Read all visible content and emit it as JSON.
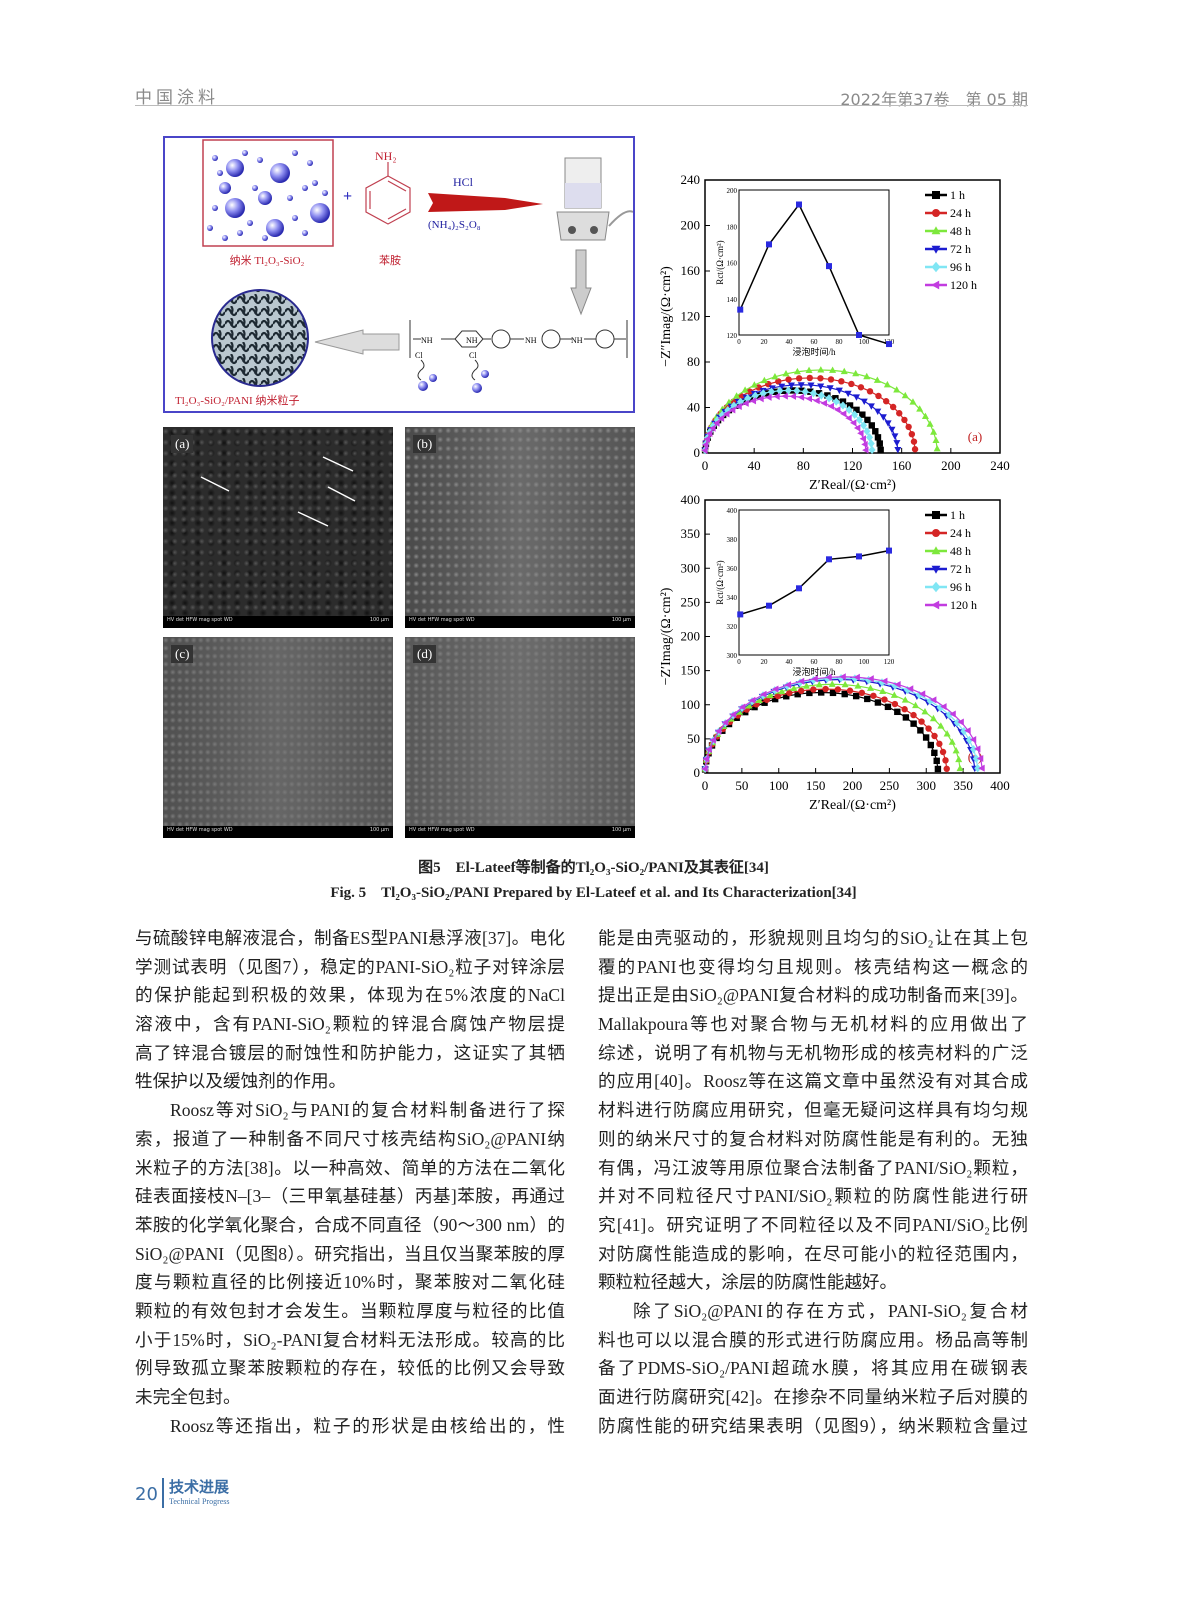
{
  "header": {
    "journal": "中国涂料",
    "issue": "2022年第37卷　第 05 期"
  },
  "scheme": {
    "reactant1_label": "纳米 Tl₂O₃-SiO₂",
    "reactant2_label": "苯胺",
    "amine_group": "NH₂",
    "plus": "+",
    "reagent_top": "HCl",
    "reagent_bottom": "(NH₄)₂S₂O₈",
    "chain_nh": [
      "NH",
      "NH",
      "NH",
      "NH"
    ],
    "chain_cl": [
      "Cl",
      "Cl"
    ],
    "product_label": "Tl₂O₃-SiO₂/PANI 纳米粒子"
  },
  "sem_images": [
    {
      "label": "(a)",
      "info": "HV  det  HFW  mag  spot  WD",
      "scale": "100 μm"
    },
    {
      "label": "(b)",
      "info": "HV  det  HFW  mag  spot  WD",
      "scale": "100 μm"
    },
    {
      "label": "(c)",
      "info": "HV  det  HFW  mag  spot  WD",
      "scale": "100 μm"
    },
    {
      "label": "(d)",
      "info": "HV  det  HFW  mag  spot  WD",
      "scale": "100 μm"
    }
  ],
  "chart_data": [
    {
      "type": "scatter-line",
      "panel_label": "(a)",
      "xlabel": "Z′Real/(Ω·cm²)",
      "ylabel": "−Z″Imag/(Ω·cm²)",
      "xlim": [
        0,
        240
      ],
      "ylim": [
        0,
        240
      ],
      "xticks": [
        "0",
        "40",
        "80",
        "120",
        "160",
        "200",
        "240"
      ],
      "yticks": [
        "0",
        "40",
        "80",
        "120",
        "160",
        "200",
        "240"
      ],
      "legend_position": "top-right",
      "series": [
        {
          "name": "1 h",
          "color": "#000000",
          "marker": "square",
          "z_real_end": 143,
          "z_imag_max": 55
        },
        {
          "name": "24 h",
          "color": "#d42525",
          "marker": "circle",
          "z_real_end": 171,
          "z_imag_max": 66
        },
        {
          "name": "48 h",
          "color": "#7de83c",
          "marker": "triangle-up",
          "z_real_end": 189,
          "z_imag_max": 73
        },
        {
          "name": "72 h",
          "color": "#1c1cd0",
          "marker": "triangle-down",
          "z_real_end": 157,
          "z_imag_max": 60
        },
        {
          "name": "96 h",
          "color": "#80e6f4",
          "marker": "diamond",
          "z_real_end": 136,
          "z_imag_max": 55
        },
        {
          "name": "120 h",
          "color": "#c23ce0",
          "marker": "triangle-left",
          "z_real_end": 131,
          "z_imag_max": 50
        }
      ],
      "inset": {
        "type": "line",
        "xlabel": "浸泡时间/h",
        "ylabel": "Rct/(Ω·cm²)",
        "xlim": [
          0,
          120
        ],
        "ylim": [
          120,
          200
        ],
        "xticks": [
          "0",
          "20",
          "40",
          "60",
          "80",
          "100",
          "120"
        ],
        "yticks": [
          "120",
          "140",
          "160",
          "180",
          "200"
        ],
        "x": [
          1,
          24,
          48,
          72,
          96,
          120
        ],
        "y": [
          134,
          170,
          192,
          158,
          120,
          115
        ]
      }
    },
    {
      "type": "scatter-line",
      "panel_label": "(a)",
      "xlabel": "Z′Real/(Ω·cm²)",
      "ylabel": "−Z′Imag/(Ω·cm²)",
      "xlim": [
        0,
        400
      ],
      "ylim": [
        0,
        400
      ],
      "xticks": [
        "0",
        "50",
        "100",
        "150",
        "200",
        "250",
        "300",
        "350",
        "400"
      ],
      "yticks": [
        "0",
        "50",
        "100",
        "150",
        "200",
        "250",
        "300",
        "350",
        "400"
      ],
      "legend_position": "top-right",
      "series": [
        {
          "name": "1 h",
          "color": "#000000",
          "marker": "square",
          "z_real_end": 316,
          "z_imag_max": 118
        },
        {
          "name": "24 h",
          "color": "#d42525",
          "marker": "circle",
          "z_real_end": 328,
          "z_imag_max": 123
        },
        {
          "name": "48 h",
          "color": "#7de83c",
          "marker": "triangle-up",
          "z_real_end": 346,
          "z_imag_max": 130
        },
        {
          "name": "72 h",
          "color": "#1c1cd0",
          "marker": "triangle-down",
          "z_real_end": 366,
          "z_imag_max": 137
        },
        {
          "name": "96 h",
          "color": "#80e6f4",
          "marker": "diamond",
          "z_real_end": 370,
          "z_imag_max": 139
        },
        {
          "name": "120 h",
          "color": "#c23ce0",
          "marker": "triangle-left",
          "z_real_end": 376,
          "z_imag_max": 141
        }
      ],
      "inset": {
        "type": "line",
        "xlabel": "浸泡时间/h",
        "ylabel": "Rct/(Ω·cm²)",
        "xlim": [
          0,
          120
        ],
        "ylim": [
          300,
          400
        ],
        "xticks": [
          "0",
          "20",
          "40",
          "60",
          "80",
          "100",
          "120"
        ],
        "yticks": [
          "300",
          "320",
          "340",
          "360",
          "380",
          "400"
        ],
        "x": [
          1,
          24,
          48,
          72,
          96,
          120
        ],
        "y": [
          328,
          334,
          346,
          366,
          368,
          372
        ]
      }
    }
  ],
  "caption": {
    "zh": "图5　El-Lateef等制备的Tl₂O₃-SiO₂/PANI及其表征[34]",
    "en": "Fig. 5　Tl₂O₃-SiO₂/PANI Prepared by El-Lateef et al. and Its Characterization[34]"
  },
  "body": {
    "left": [
      "与硫酸锌电解液混合，制备ES型PANI悬浮液[37]。电化",
      "学测试表明（见图7），稳定的PANI-SiO₂粒子对锌涂层",
      "的保护能起到积极的效果，体现为在5%浓度的NaCl",
      "溶液中，含有PANI-SiO₂颗粒的锌混合腐蚀产物层提",
      "高了锌混合镀层的耐蚀性和防护能力，这证实了其牺",
      "牲保护以及缓蚀剂的作用。",
      "Roosz等对SiO₂与PANI的复合材料制备进行了探",
      "索，报道了一种制备不同尺寸核壳结构SiO₂@PANI纳",
      "米粒子的方法[38]。以一种高效、简单的方法在二氧化",
      "硅表面接枝N–[3–（三甲氧基硅基）丙基]苯胺，再通过",
      "苯胺的化学氧化聚合，合成不同直径（90～300 nm）的",
      "SiO₂@PANI（见图8）。研究指出，当且仅当聚苯胺的厚",
      "度与颗粒直径的比例接近10%时，聚苯胺对二氧化硅",
      "颗粒的有效包封才会发生。当颗粒厚度与粒径的比值",
      "小于15%时，SiO₂-PANI复合材料无法形成。较高的比",
      "例导致孤立聚苯胺颗粒的存在，较低的比例又会导致",
      "未完全包封。",
      "Roosz等还指出，粒子的形状是由核给出的，性"
    ],
    "right": [
      "能是由壳驱动的，形貌规则且均匀的SiO₂让在其上包",
      "覆的PANI也变得均匀且规则。核壳结构这一概念的",
      "提出正是由SiO₂@PANI复合材料的成功制备而来[39]。",
      "Mallakpoura等也对聚合物与无机材料的应用做出了",
      "综述，说明了有机物与无机物形成的核壳材料的广泛",
      "的应用[40]。Roosz等在这篇文章中虽然没有对其合成",
      "材料进行防腐应用研究，但毫无疑问这样具有均匀规",
      "则的纳米尺寸的复合材料对防腐性能是有利的。无独",
      "有偶，冯江波等用原位聚合法制备了PANI/SiO₂颗粒，",
      "并对不同粒径尺寸PANI/SiO₂颗粒的防腐性能进行研",
      "究[41]。研究证明了不同粒径以及不同PANI/SiO₂比例",
      "对防腐性能造成的影响，在尽可能小的粒径范围内，",
      "颗粒粒径越大，涂层的防腐性能越好。",
      "除了SiO₂@PANI的存在方式，PANI-SiO₂复合材",
      "料也可以以混合膜的形式进行防腐应用。杨品高等制",
      "备了PDMS-SiO₂/PANI超疏水膜，将其应用在碳钢表",
      "面进行防腐研究[42]。在掺杂不同量纳米粒子后对膜的",
      "防腐性能的研究结果表明（见图9），纳米颗粒含量过"
    ]
  },
  "footer": {
    "page": "20",
    "section_zh": "技术进展",
    "section_en": "Technical Progress"
  }
}
